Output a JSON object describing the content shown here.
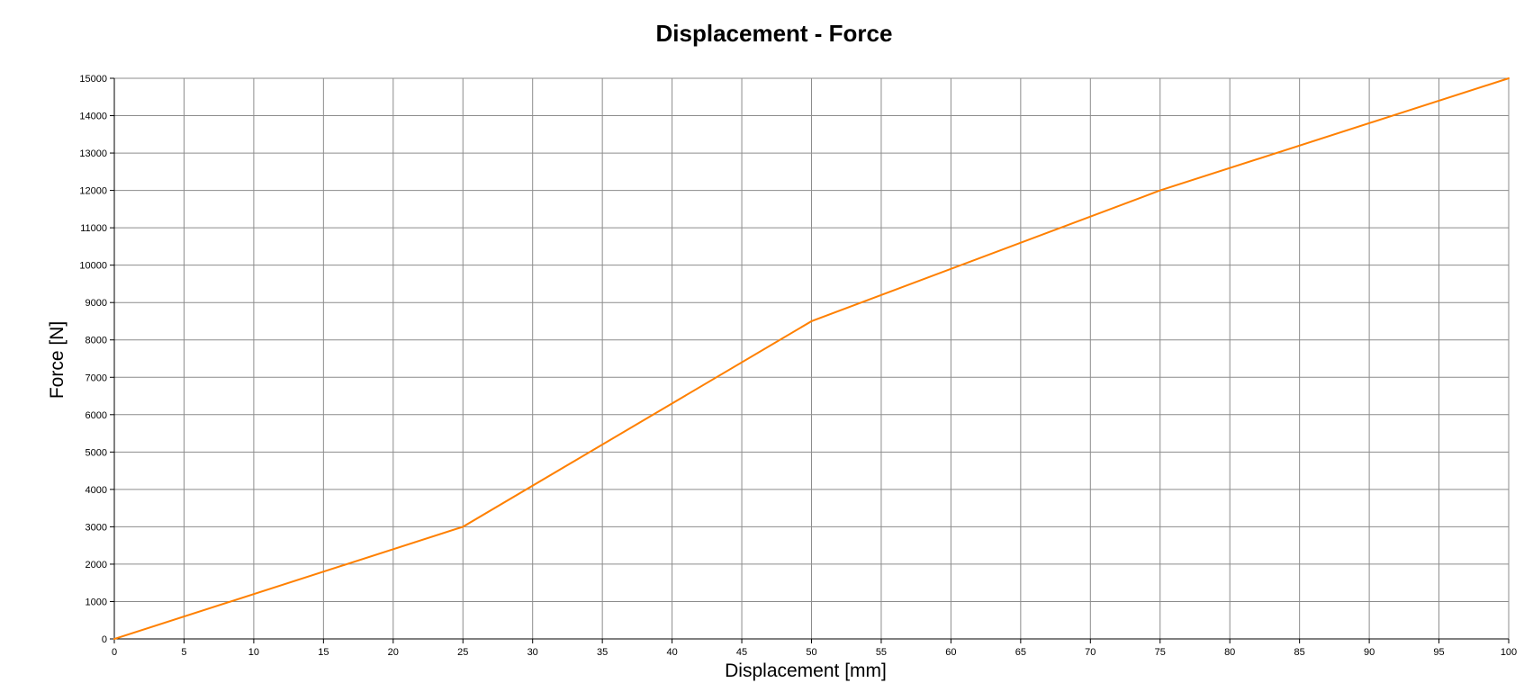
{
  "chart_data": {
    "type": "line",
    "title": "Displacement - Force",
    "xlabel": "Displacement [mm]",
    "ylabel": "Force [N]",
    "xlim": [
      0,
      100
    ],
    "ylim": [
      0,
      15000
    ],
    "x_ticks": [
      0,
      5,
      10,
      15,
      20,
      25,
      30,
      35,
      40,
      45,
      50,
      55,
      60,
      65,
      70,
      75,
      80,
      85,
      90,
      95,
      100
    ],
    "y_ticks": [
      0,
      1000,
      2000,
      3000,
      4000,
      5000,
      6000,
      7000,
      8000,
      9000,
      10000,
      11000,
      12000,
      13000,
      14000,
      15000
    ],
    "grid": true,
    "series": [
      {
        "name": "Force",
        "color": "#ff8000",
        "x": [
          0,
          25,
          50,
          75,
          100
        ],
        "y": [
          0,
          3000,
          8500,
          12000,
          15000
        ]
      }
    ]
  }
}
